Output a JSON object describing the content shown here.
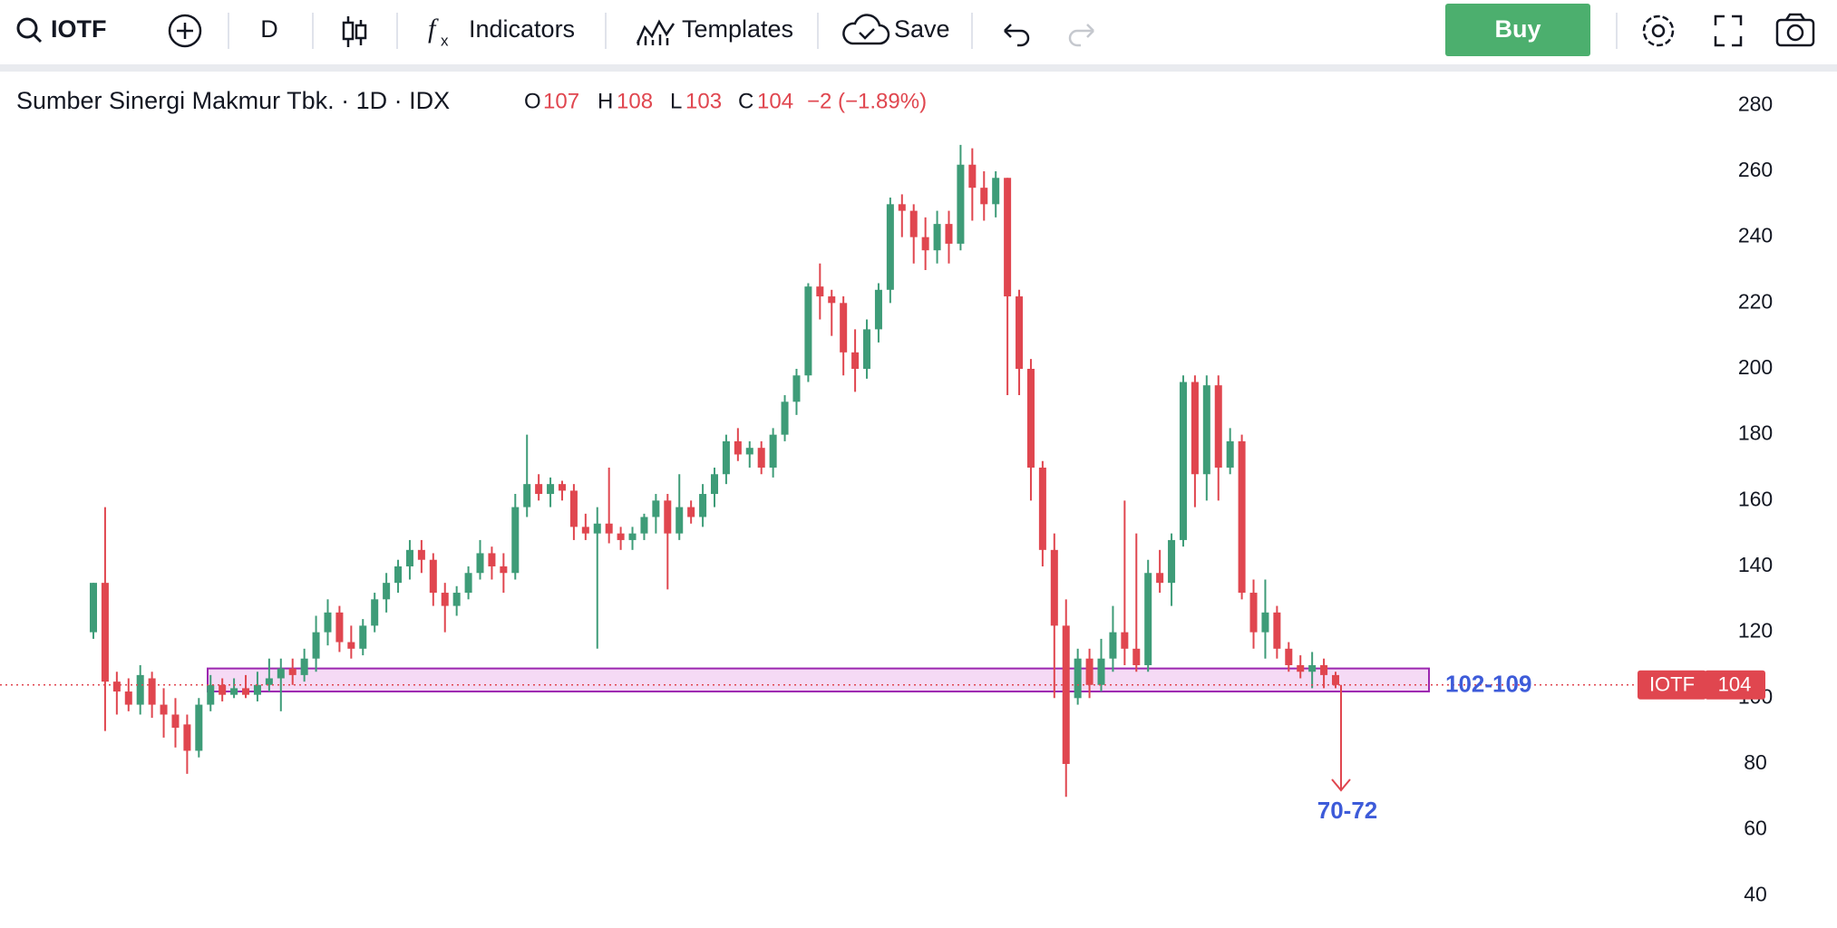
{
  "toolbar": {
    "symbol": "IOTF",
    "interval": "D",
    "indicators": "Indicators",
    "templates": "Templates",
    "save": "Save",
    "buy": "Buy"
  },
  "chart_data": {
    "type": "candlestick",
    "title": "Sumber Sinergi Makmur Tbk. · 1D · IDX",
    "legend": [
      {
        "label": "O",
        "value": 107
      },
      {
        "label": "H",
        "value": 108
      },
      {
        "label": "L",
        "value": 103
      },
      {
        "label": "C",
        "value": 104
      }
    ],
    "change": "−2 (−1.89%)",
    "up_color": "#3e9c78",
    "down_color": "#e0464f",
    "ylim": [
      31,
      290
    ],
    "yticks": [
      40,
      60,
      80,
      100,
      120,
      140,
      160,
      180,
      200,
      220,
      240,
      260,
      280
    ],
    "zone": {
      "low": 102,
      "high": 109,
      "label": "102-109"
    },
    "target": {
      "low": 70,
      "high": 72,
      "label": "70-72"
    },
    "last_price": {
      "symbol": "IOTF",
      "value": 104
    },
    "candles": [
      [
        120,
        135,
        118,
        135
      ],
      [
        135,
        158,
        90,
        105
      ],
      [
        105,
        108,
        95,
        102
      ],
      [
        102,
        106,
        96,
        98
      ],
      [
        98,
        110,
        95,
        107
      ],
      [
        106,
        108,
        94,
        98
      ],
      [
        98,
        103,
        88,
        95
      ],
      [
        95,
        100,
        85,
        91
      ],
      [
        92,
        95,
        77,
        84
      ],
      [
        84,
        100,
        82,
        98
      ],
      [
        98,
        107,
        96,
        104
      ],
      [
        104,
        106,
        99,
        101
      ],
      [
        101,
        106,
        100,
        103
      ],
      [
        103,
        107,
        100,
        101
      ],
      [
        101,
        108,
        99,
        104
      ],
      [
        104,
        112,
        102,
        106
      ],
      [
        106,
        112,
        96,
        109
      ],
      [
        109,
        112,
        104,
        107
      ],
      [
        107,
        115,
        105,
        112
      ],
      [
        112,
        125,
        108,
        120
      ],
      [
        120,
        130,
        116,
        126
      ],
      [
        126,
        128,
        114,
        117
      ],
      [
        117,
        122,
        112,
        115
      ],
      [
        115,
        124,
        113,
        122
      ],
      [
        122,
        132,
        120,
        130
      ],
      [
        130,
        138,
        126,
        135
      ],
      [
        135,
        142,
        132,
        140
      ],
      [
        140,
        148,
        136,
        145
      ],
      [
        145,
        148,
        138,
        142
      ],
      [
        142,
        144,
        128,
        132
      ],
      [
        132,
        135,
        120,
        128
      ],
      [
        128,
        134,
        125,
        132
      ],
      [
        132,
        140,
        130,
        138
      ],
      [
        138,
        148,
        136,
        144
      ],
      [
        144,
        146,
        136,
        140
      ],
      [
        140,
        144,
        132,
        138
      ],
      [
        138,
        162,
        136,
        158
      ],
      [
        158,
        180,
        155,
        165
      ],
      [
        165,
        168,
        160,
        162
      ],
      [
        162,
        167,
        158,
        165
      ],
      [
        165,
        166,
        160,
        163
      ],
      [
        163,
        165,
        148,
        152
      ],
      [
        152,
        156,
        148,
        150
      ],
      [
        150,
        158,
        115,
        153
      ],
      [
        153,
        170,
        147,
        150
      ],
      [
        150,
        152,
        145,
        148
      ],
      [
        148,
        152,
        145,
        150
      ],
      [
        150,
        156,
        148,
        155
      ],
      [
        155,
        162,
        150,
        160
      ],
      [
        160,
        162,
        133,
        150
      ],
      [
        150,
        168,
        148,
        158
      ],
      [
        158,
        160,
        153,
        155
      ],
      [
        155,
        165,
        152,
        162
      ],
      [
        162,
        170,
        158,
        168
      ],
      [
        168,
        180,
        165,
        178
      ],
      [
        178,
        182,
        172,
        174
      ],
      [
        174,
        178,
        170,
        176
      ],
      [
        176,
        178,
        168,
        170
      ],
      [
        170,
        182,
        167,
        180
      ],
      [
        180,
        192,
        178,
        190
      ],
      [
        190,
        200,
        186,
        198
      ],
      [
        198,
        226,
        196,
        225
      ],
      [
        225,
        232,
        215,
        222
      ],
      [
        222,
        224,
        210,
        220
      ],
      [
        220,
        222,
        198,
        205
      ],
      [
        205,
        212,
        193,
        200
      ],
      [
        200,
        215,
        197,
        212
      ],
      [
        212,
        226,
        208,
        224
      ],
      [
        224,
        252,
        220,
        250
      ],
      [
        250,
        253,
        240,
        248
      ],
      [
        248,
        250,
        232,
        240
      ],
      [
        240,
        246,
        230,
        236
      ],
      [
        236,
        248,
        232,
        244
      ],
      [
        244,
        248,
        232,
        238
      ],
      [
        238,
        268,
        236,
        262
      ],
      [
        262,
        267,
        245,
        255
      ],
      [
        255,
        260,
        245,
        250
      ],
      [
        250,
        260,
        246,
        258
      ],
      [
        258,
        258,
        192,
        222
      ],
      [
        222,
        224,
        192,
        200
      ],
      [
        200,
        203,
        160,
        170
      ],
      [
        170,
        172,
        140,
        145
      ],
      [
        145,
        150,
        100,
        122
      ],
      [
        122,
        130,
        70,
        80
      ],
      [
        100,
        115,
        98,
        112
      ],
      [
        112,
        115,
        100,
        104
      ],
      [
        104,
        118,
        102,
        112
      ],
      [
        112,
        128,
        108,
        120
      ],
      [
        120,
        160,
        110,
        115
      ],
      [
        115,
        150,
        108,
        110
      ],
      [
        110,
        142,
        108,
        138
      ],
      [
        138,
        145,
        132,
        135
      ],
      [
        135,
        150,
        128,
        148
      ],
      [
        148,
        198,
        146,
        196
      ],
      [
        196,
        198,
        158,
        168
      ],
      [
        168,
        198,
        160,
        195
      ],
      [
        195,
        198,
        160,
        170
      ],
      [
        170,
        182,
        168,
        178
      ],
      [
        178,
        180,
        130,
        132
      ],
      [
        132,
        136,
        115,
        120
      ],
      [
        120,
        136,
        112,
        126
      ],
      [
        126,
        128,
        112,
        115
      ],
      [
        115,
        117,
        108,
        110
      ],
      [
        110,
        113,
        106,
        108
      ],
      [
        108,
        114,
        103,
        110
      ],
      [
        110,
        112,
        103,
        107
      ],
      [
        107,
        108,
        103,
        104
      ]
    ]
  }
}
